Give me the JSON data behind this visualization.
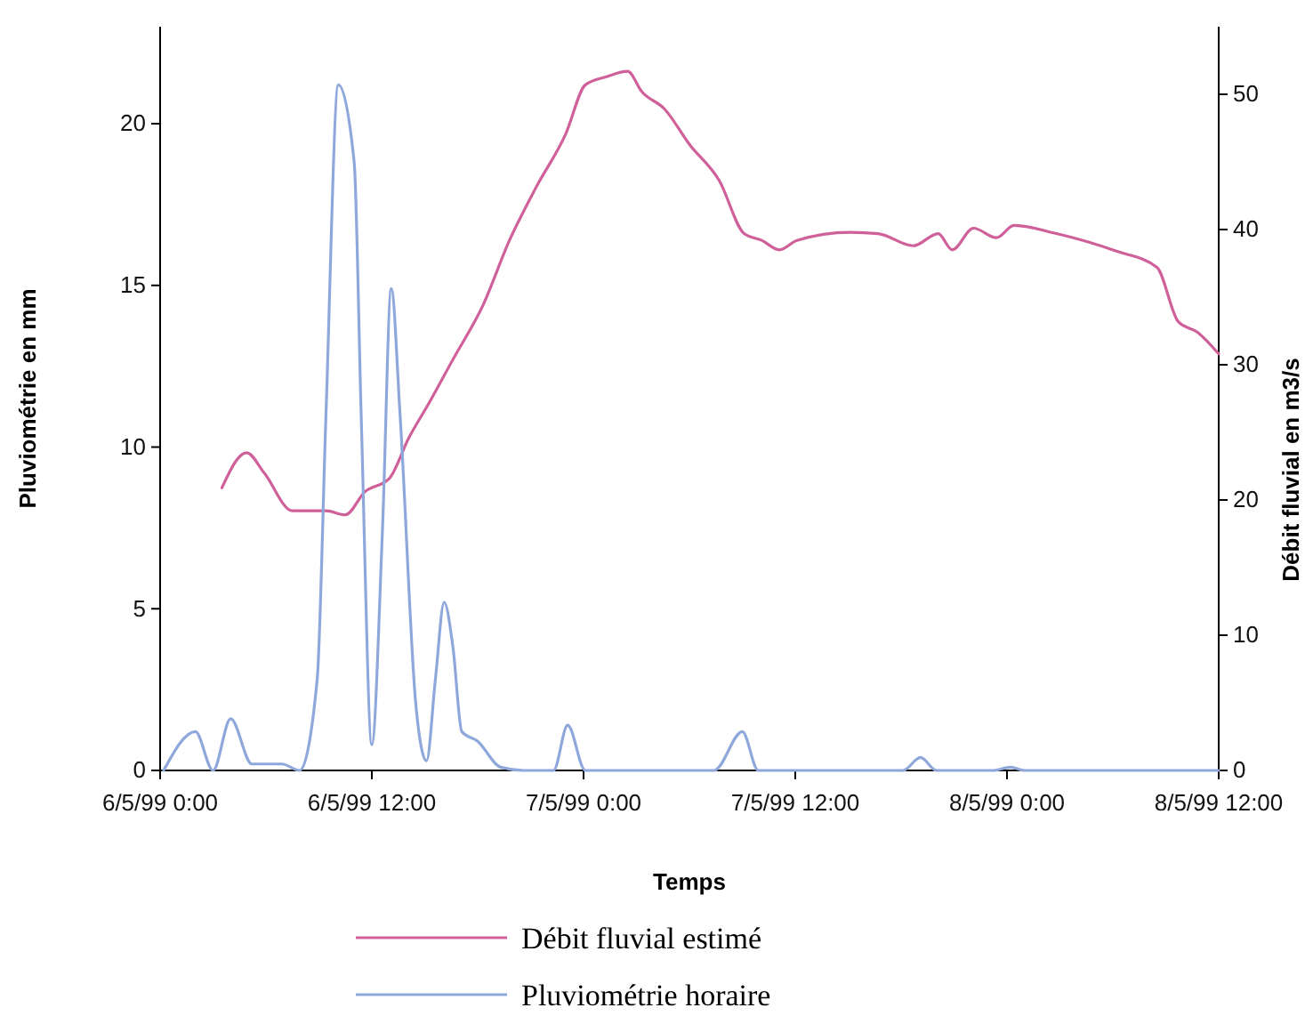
{
  "chart_data": {
    "type": "line",
    "xlabel": "Temps",
    "ylabel": "Pluviométrie en mm",
    "y2label": "Débit fluvial en m3/s",
    "xlim": [
      "1999-05-06T00:00",
      "1999-05-08T12:00"
    ],
    "xticks": [
      {
        "value": "1999-05-06T00:00",
        "label": "6/5/99 0:00"
      },
      {
        "value": "1999-05-06T12:00",
        "label": "6/5/99 12:00"
      },
      {
        "value": "1999-05-07T00:00",
        "label": "7/5/99 0:00"
      },
      {
        "value": "1999-05-07T12:00",
        "label": "7/5/99 12:00"
      },
      {
        "value": "1999-05-08T00:00",
        "label": "8/5/99 0:00"
      },
      {
        "value": "1999-05-08T12:00",
        "label": "8/5/99 12:00"
      }
    ],
    "ylim": [
      0,
      23
    ],
    "yticks": [
      0,
      5,
      10,
      15,
      20
    ],
    "y2lim": [
      0,
      55
    ],
    "y2ticks": [
      0,
      10,
      20,
      30,
      40,
      50
    ],
    "grid": false,
    "legend": "bottom",
    "marker": "none",
    "line_style": "solid",
    "series": [
      {
        "name": "Débit fluvial estimé",
        "color": "#d0609a",
        "axis": "y2",
        "x": [
          "1999-05-06T03:30",
          "1999-05-06T04:54",
          "1999-05-06T05:54",
          "1999-05-06T07:30",
          "1999-05-06T09:24",
          "1999-05-06T10:30",
          "1999-05-06T11:36",
          "1999-05-06T13:00",
          "1999-05-06T14:06",
          "1999-05-06T15:18",
          "1999-05-06T16:36",
          "1999-05-06T18:18",
          "1999-05-06T19:48",
          "1999-05-06T21:18",
          "1999-05-06T23:00",
          "1999-05-07T00:06",
          "1999-05-07T01:18",
          "1999-05-07T02:30",
          "1999-05-07T03:18",
          "1999-05-07T04:36",
          "1999-05-07T06:00",
          "1999-05-07T07:42",
          "1999-05-07T09:06",
          "1999-05-07T10:06",
          "1999-05-07T11:06",
          "1999-05-07T12:06",
          "1999-05-07T15:06",
          "1999-05-07T16:42",
          "1999-05-07T18:42",
          "1999-05-07T20:06",
          "1999-05-07T20:54",
          "1999-05-07T22:06",
          "1999-05-07T23:24",
          "1999-05-08T00:24",
          "1999-05-08T02:48",
          "1999-05-08T06:12",
          "1999-05-08T08:30",
          "1999-05-08T09:42",
          "1999-05-08T10:48",
          "1999-05-08T12:00"
        ],
        "values": [
          20.9,
          23.5,
          22.0,
          19.2,
          19.2,
          18.9,
          20.6,
          21.6,
          24.6,
          27.3,
          30.4,
          34.4,
          39.2,
          43.1,
          47.1,
          50.7,
          51.3,
          51.7,
          50.2,
          48.9,
          46.3,
          43.6,
          39.7,
          39.2,
          38.5,
          39.2,
          39.8,
          39.7,
          38.8,
          39.7,
          38.5,
          40.1,
          39.4,
          40.3,
          39.7,
          38.4,
          37.2,
          33.2,
          32.4,
          30.8
        ]
      },
      {
        "name": "Pluviométrie horaire",
        "color": "#8fa8dc",
        "x": [
          "1999-05-06T00:12",
          "1999-05-06T02:00",
          "1999-05-06T03:00",
          "1999-05-06T04:00",
          "1999-05-06T05:12",
          "1999-05-06T06:54",
          "1999-05-06T07:54",
          "1999-05-06T08:54",
          "1999-05-06T09:24",
          "1999-05-06T10:06",
          "1999-05-06T11:00",
          "1999-05-06T11:24",
          "1999-05-06T12:00",
          "1999-05-06T12:36",
          "1999-05-06T13:06",
          "1999-05-06T13:36",
          "1999-05-06T14:30",
          "1999-05-06T15:06",
          "1999-05-06T15:36",
          "1999-05-06T16:06",
          "1999-05-06T16:36",
          "1999-05-06T17:06",
          "1999-05-06T18:00",
          "1999-05-06T19:18",
          "1999-05-06T20:36",
          "1999-05-06T22:18",
          "1999-05-06T23:06",
          "1999-05-07T00:06",
          "1999-05-07T07:24",
          "1999-05-07T09:00",
          "1999-05-07T09:54",
          "1999-05-07T18:06",
          "1999-05-07T19:06",
          "1999-05-07T20:00",
          "1999-05-07T23:12",
          "1999-05-08T00:12",
          "1999-05-08T01:00",
          "1999-05-08T12:00"
        ],
        "values": [
          0,
          1.2,
          0,
          1.6,
          0.2,
          0.2,
          0,
          2.8,
          11,
          21.2,
          18.8,
          10.9,
          0.8,
          7.4,
          14.9,
          11,
          2,
          0.3,
          2.8,
          5.2,
          3.8,
          1.2,
          0.9,
          0.1,
          0,
          0,
          1.4,
          0,
          0,
          1.2,
          0,
          0,
          0.4,
          0,
          0,
          0.1,
          0,
          0
        ]
      }
    ]
  }
}
